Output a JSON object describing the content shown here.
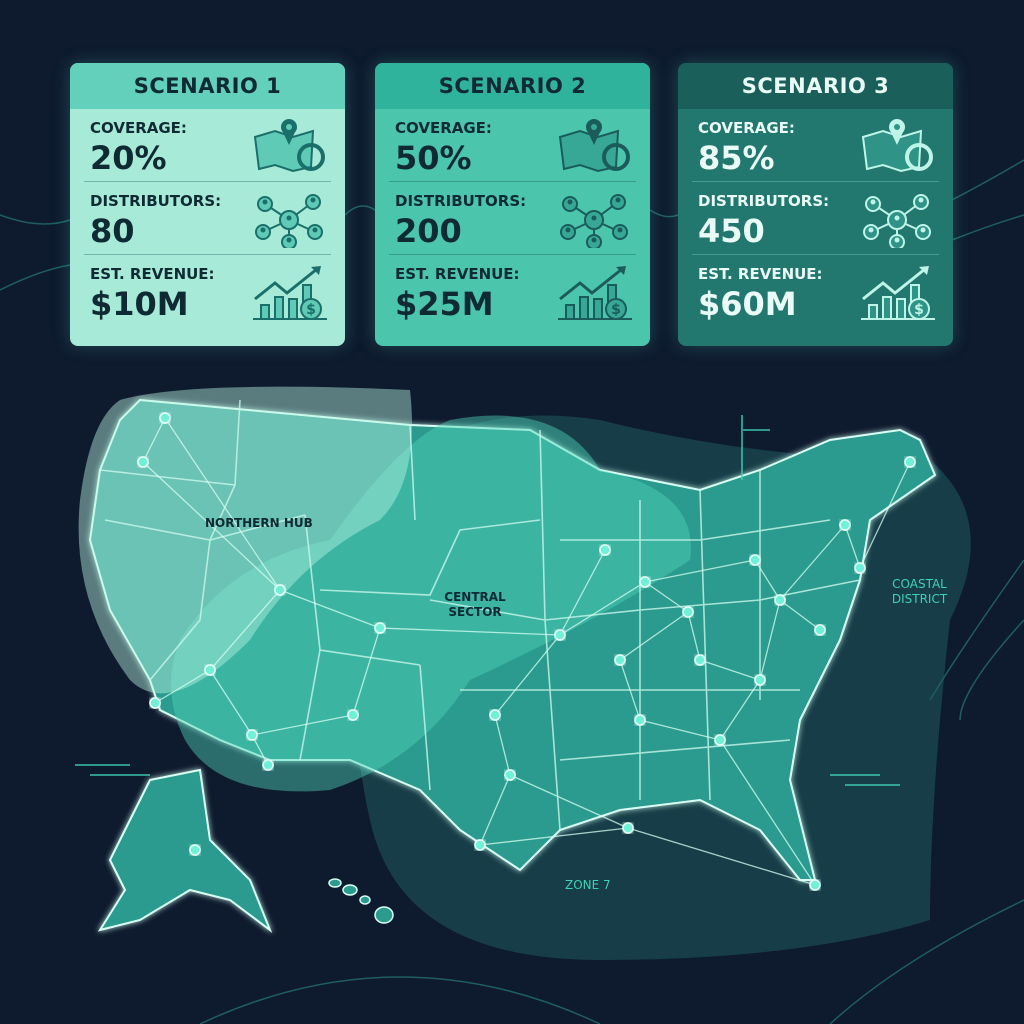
{
  "scenarios": [
    {
      "title": "SCENARIO 1",
      "coverage_label": "COVERAGE:",
      "coverage": "20%",
      "distributors_label": "DISTRIBUTORS:",
      "distributors": "80",
      "revenue_label": "EST. REVENUE:",
      "revenue": "$10M"
    },
    {
      "title": "SCENARIO 2",
      "coverage_label": "COVERAGE:",
      "coverage": "50%",
      "distributors_label": "DISTRIBUTORS:",
      "distributors": "200",
      "revenue_label": "EST. REVENUE:",
      "revenue": "$25M"
    },
    {
      "title": "SCENARIO 3",
      "coverage_label": "COVERAGE:",
      "coverage": "85%",
      "distributors_label": "DISTRIBUTORS:",
      "distributors": "450",
      "revenue_label": "EST. REVENUE:",
      "revenue": "$60M"
    }
  ],
  "map": {
    "regions": {
      "northern": "NORTHERN HUB",
      "central": "CENTRAL SECTOR",
      "coastal": "COASTAL DISTRICT",
      "zone": "ZONE 7"
    }
  },
  "colors": {
    "background": "#0e1a2e",
    "accent": "#5fe0c8",
    "card1": "#a6ead7",
    "card2": "#4cc5ad",
    "card3": "#22786f"
  }
}
